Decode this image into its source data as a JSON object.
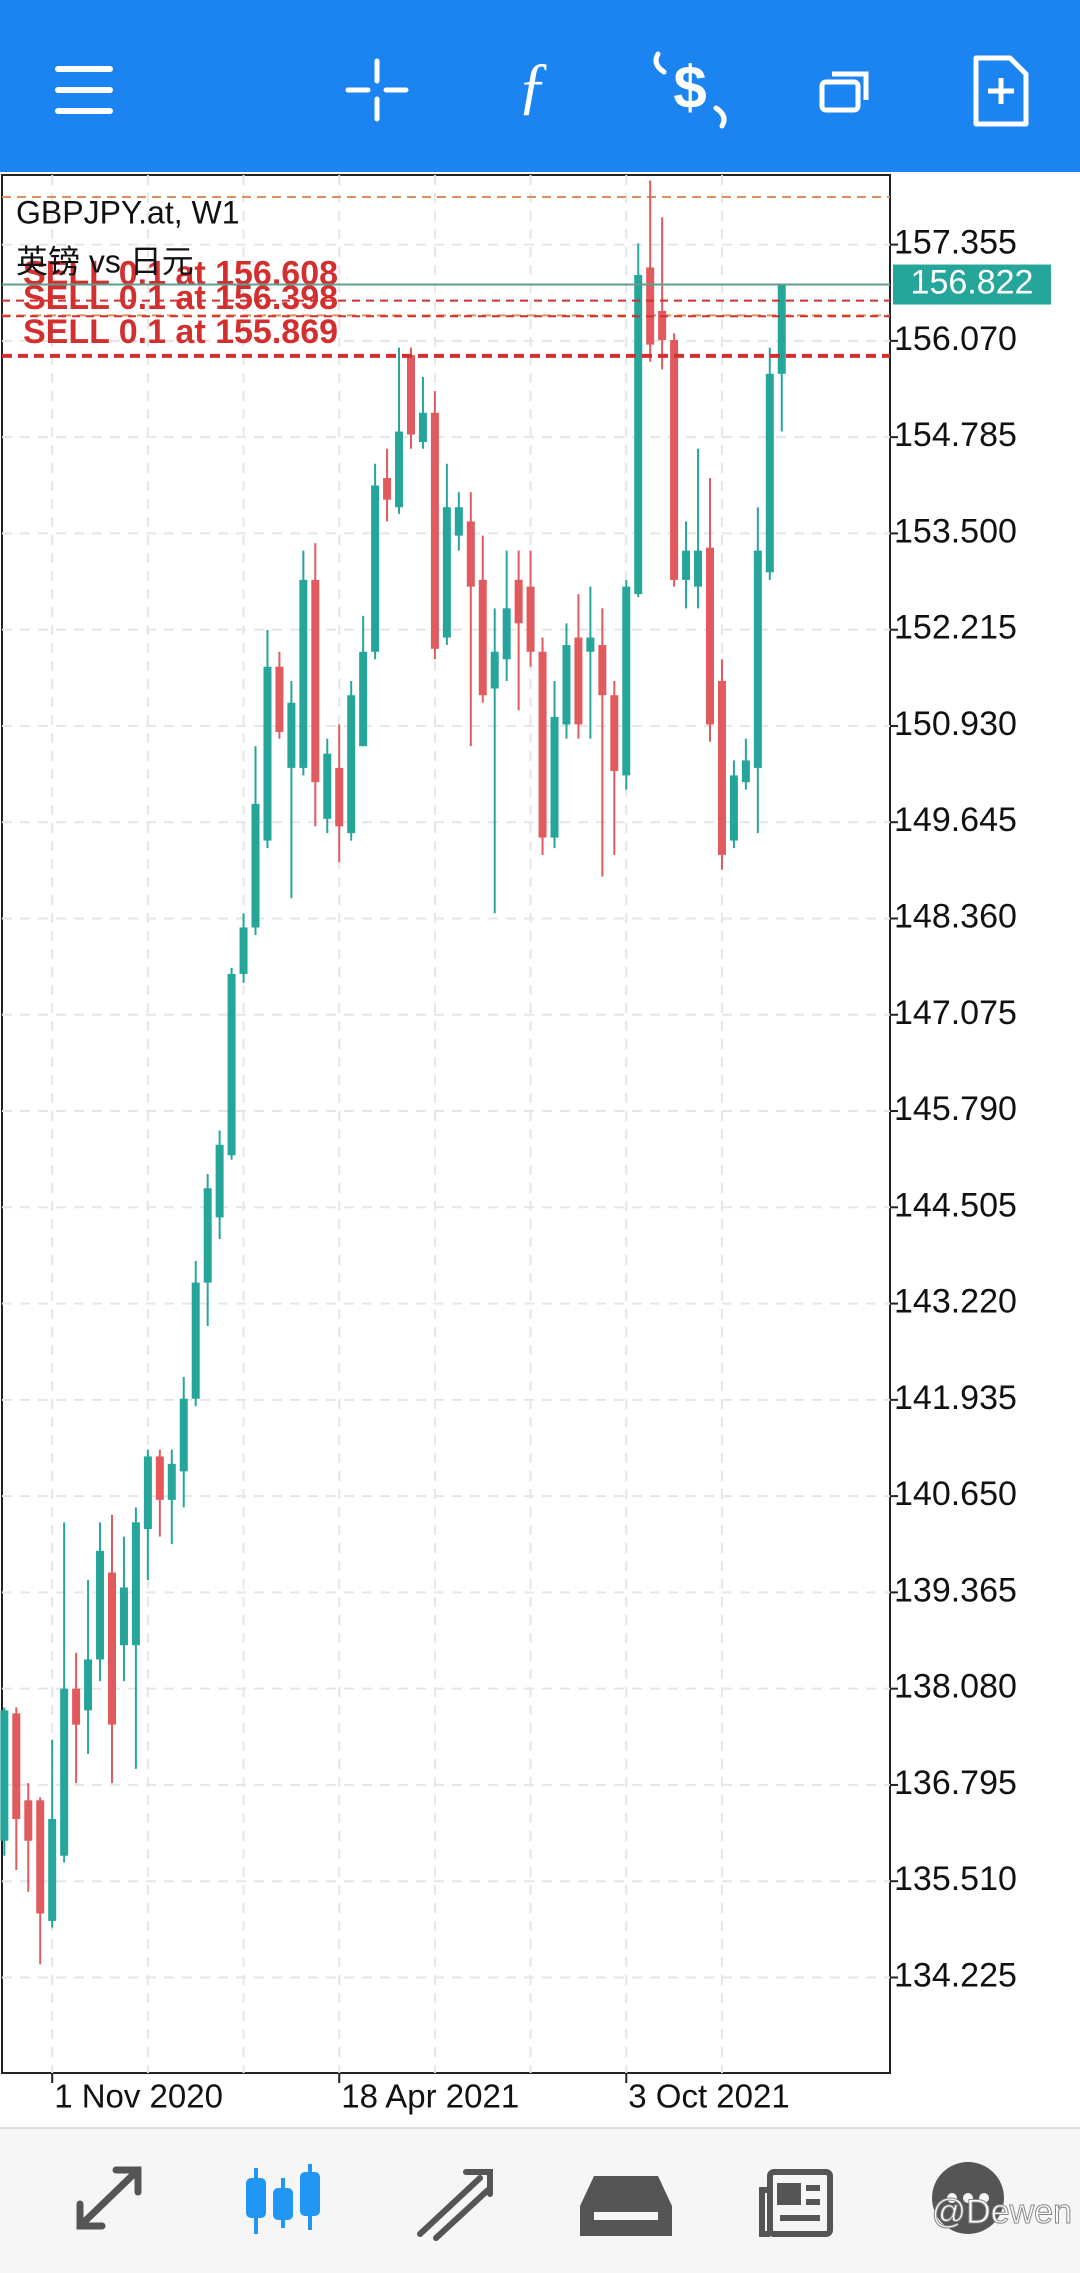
{
  "watermark": "@Dewen",
  "chart_data": {
    "type": "candlestick",
    "title": "GBPJPY.at, W1",
    "subtitle": "英镑 vs 日元",
    "categories": [
      null,
      null,
      null,
      null,
      "1 Nov 2020",
      null,
      null,
      null,
      null,
      null,
      null,
      null,
      null,
      null,
      null,
      null,
      null,
      null,
      null,
      null,
      null,
      null,
      null,
      null,
      null,
      null,
      null,
      null,
      "18 Apr 2021",
      null,
      null,
      null,
      null,
      null,
      null,
      null,
      null,
      null,
      null,
      null,
      null,
      null,
      null,
      null,
      null,
      null,
      null,
      null,
      null,
      null,
      null,
      null,
      "3 Oct 2021",
      null,
      null,
      null,
      null,
      null,
      null,
      null,
      null,
      null,
      null,
      null,
      null,
      null
    ],
    "open": [
      136.05,
      137.75,
      136.59,
      136.59,
      134.98,
      135.85,
      138.08,
      137.79,
      138.47,
      139.63,
      138.66,
      138.66,
      140.21,
      141.18,
      140.6,
      140.98,
      141.95,
      143.5,
      144.37,
      145.2,
      147.62,
      148.24,
      149.4,
      151.72,
      150.37,
      150.37,
      152.88,
      149.69,
      150.37,
      149.5,
      150.66,
      151.92,
      154.24,
      153.85,
      155.88,
      154.72,
      155.11,
      152.11,
      153.47,
      153.66,
      152.88,
      151.43,
      151.82,
      152.88,
      152.79,
      151.92,
      149.44,
      150.95,
      152.11,
      151.92,
      152.01,
      151.34,
      150.27,
      152.69,
      157.05,
      156.47,
      156.08,
      152.88,
      152.79,
      153.31,
      151.53,
      149.4,
      150.18,
      150.37,
      152.98,
      155.63
    ],
    "high": [
      137.83,
      137.83,
      136.82,
      136.63,
      137.4,
      140.3,
      138.56,
      139.53,
      140.3,
      140.4,
      140.11,
      140.5,
      141.27,
      141.27,
      141.27,
      142.24,
      143.79,
      144.95,
      145.53,
      147.7,
      148.43,
      150.66,
      152.21,
      151.92,
      151.53,
      153.27,
      153.37,
      150.76,
      150.95,
      151.53,
      152.4,
      154.43,
      154.63,
      155.98,
      155.98,
      155.59,
      155.4,
      154.43,
      154.05,
      154.05,
      153.47,
      152.5,
      153.27,
      153.27,
      153.27,
      152.11,
      151.53,
      152.3,
      152.69,
      152.79,
      152.5,
      151.53,
      152.88,
      157.37,
      158.21,
      157.72,
      156.17,
      153.66,
      154.63,
      154.24,
      151.82,
      150.47,
      150.76,
      153.85,
      155.98,
      156.83
    ],
    "low": [
      135.85,
      135.66,
      135.37,
      134.4,
      134.89,
      135.76,
      136.82,
      137.21,
      138.18,
      136.82,
      138.18,
      137.01,
      139.53,
      140.11,
      140.01,
      140.5,
      141.85,
      142.92,
      144.08,
      145.14,
      147.5,
      148.14,
      149.3,
      150.76,
      148.63,
      150.27,
      149.59,
      149.5,
      149.11,
      149.4,
      150.66,
      151.82,
      153.66,
      153.76,
      154.63,
      154.63,
      151.82,
      152.01,
      153.27,
      150.66,
      151.24,
      148.43,
      151.53,
      151.14,
      151.72,
      149.21,
      149.3,
      150.76,
      150.76,
      150.76,
      148.92,
      149.21,
      150.08,
      152.65,
      155.79,
      155.69,
      152.79,
      152.5,
      152.5,
      150.72,
      149.01,
      149.3,
      150.08,
      149.5,
      152.88,
      154.86
    ],
    "close": [
      137.79,
      136.34,
      136.05,
      135.08,
      136.34,
      138.08,
      137.6,
      138.47,
      139.92,
      137.6,
      139.43,
      140.3,
      141.18,
      140.6,
      141.08,
      141.95,
      143.5,
      144.76,
      145.34,
      147.62,
      148.24,
      149.89,
      151.72,
      150.85,
      151.24,
      152.88,
      150.18,
      150.56,
      149.59,
      151.34,
      151.92,
      154.14,
      153.95,
      154.86,
      154.82,
      155.11,
      151.96,
      153.85,
      153.85,
      152.79,
      151.34,
      151.92,
      152.5,
      152.3,
      151.92,
      149.44,
      151.05,
      152.01,
      150.95,
      152.11,
      151.34,
      150.33,
      152.79,
      156.95,
      156.02,
      156.08,
      152.88,
      153.27,
      153.27,
      150.95,
      149.21,
      150.27,
      150.47,
      153.27,
      155.63,
      156.822
    ],
    "up_color": "#26a69a",
    "down_color": "#e05a5e",
    "ylim": [
      132.95,
      158.284
    ],
    "yticks": [
      134.225,
      {
        "value": 135.51,
        "label": "135.510"
      },
      136.795,
      {
        "value": 138.08,
        "label": "138.080"
      },
      139.365,
      {
        "value": 140.65,
        "label": "140.650"
      },
      141.935,
      {
        "value": 143.22,
        "label": "143.220"
      },
      144.505,
      {
        "value": 145.79,
        "label": "145.790"
      },
      147.075,
      {
        "value": 148.36,
        "label": "148.360"
      },
      149.645,
      {
        "value": 150.93,
        "label": "150.930"
      },
      152.215,
      {
        "value": 153.5,
        "label": "153.500"
      },
      154.785,
      {
        "value": 156.07,
        "label": "156.070"
      },
      157.355
    ],
    "grid": true,
    "current_price": 156.822,
    "current_price_color": "#26a69a",
    "orders": [
      {
        "label": "SELL 0.1 at 156.608",
        "value": 156.608
      },
      {
        "label": "SELL 0.1 at 156.398",
        "value": 156.398
      },
      {
        "label": "SELL 0.1 at 155.869",
        "value": 155.869
      }
    ],
    "order_color": "#d32f2f",
    "levels": [
      157.99,
      156.41
    ],
    "level_color": "#e0915a"
  }
}
